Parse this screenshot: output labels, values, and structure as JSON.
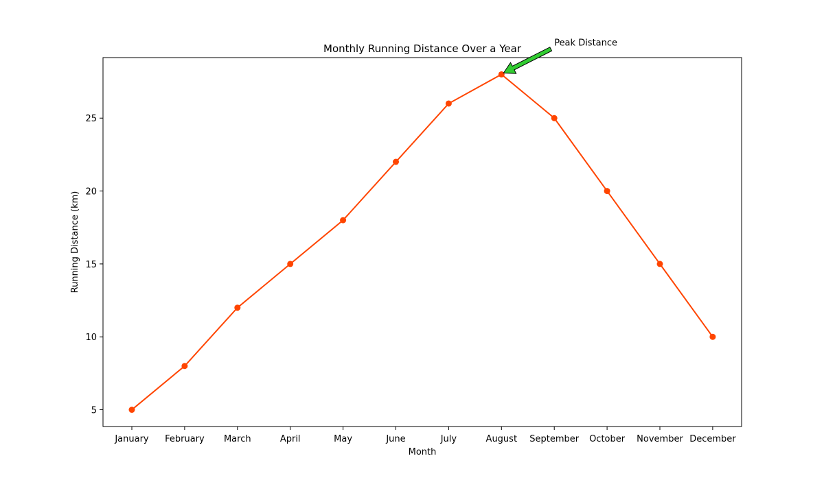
{
  "chart_data": {
    "type": "line",
    "title": "Monthly Running Distance Over a Year",
    "xlabel": "Month",
    "ylabel": "Running Distance (km)",
    "categories": [
      "January",
      "February",
      "March",
      "April",
      "May",
      "June",
      "July",
      "August",
      "September",
      "October",
      "November",
      "December"
    ],
    "series": [
      {
        "values": [
          5,
          8,
          12,
          15,
          18,
          22,
          26,
          28,
          25,
          20,
          15,
          10
        ],
        "color": "#ff4500"
      }
    ],
    "ylim": [
      3.85,
      29.15
    ],
    "yticks": [
      5,
      10,
      15,
      20,
      25
    ],
    "grid": false,
    "annotations": [
      {
        "text": "Peak Distance",
        "category": "August",
        "value": 28,
        "arrow_color": "#32cd32"
      }
    ]
  }
}
